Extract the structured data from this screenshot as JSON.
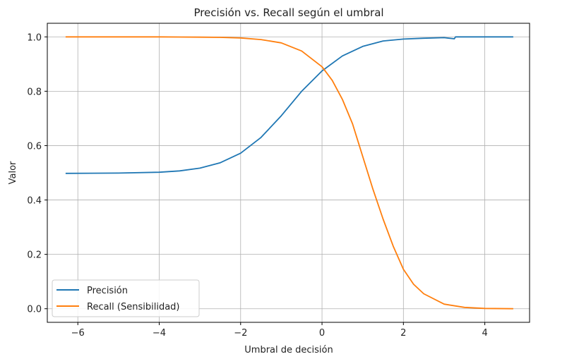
{
  "chart_data": {
    "type": "line",
    "title": "Precisión vs. Recall según el umbral",
    "xlabel": "Umbral de decisión",
    "ylabel": "Valor",
    "xlim": [
      -6.75,
      5.1
    ],
    "ylim": [
      -0.05,
      1.05
    ],
    "xticks": [
      -6,
      -4,
      -2,
      0,
      2,
      4
    ],
    "xtick_labels": [
      "−6",
      "−4",
      "−2",
      "0",
      "2",
      "4"
    ],
    "yticks": [
      0.0,
      0.2,
      0.4,
      0.6,
      0.8,
      1.0
    ],
    "ytick_labels": [
      "0.0",
      "0.2",
      "0.4",
      "0.6",
      "0.8",
      "1.0"
    ],
    "grid": true,
    "legend_position": "lower-left",
    "series": [
      {
        "name": "Precisión",
        "color": "#1f77b4",
        "x": [
          -6.3,
          -5,
          -4,
          -3.5,
          -3,
          -2.5,
          -2,
          -1.5,
          -1,
          -0.5,
          0,
          0.5,
          1,
          1.5,
          2,
          2.5,
          3,
          3.25,
          3.28,
          4,
          4.7
        ],
        "y": [
          0.498,
          0.499,
          0.502,
          0.507,
          0.517,
          0.537,
          0.572,
          0.63,
          0.71,
          0.8,
          0.875,
          0.93,
          0.965,
          0.985,
          0.992,
          0.995,
          0.997,
          0.993,
          1.0,
          1.0,
          1.0
        ]
      },
      {
        "name": "Recall (Sensibilidad)",
        "color": "#ff7f0e",
        "x": [
          -6.3,
          -4,
          -3,
          -2.5,
          -2,
          -1.5,
          -1,
          -0.5,
          0,
          0.25,
          0.5,
          0.75,
          1,
          1.25,
          1.5,
          1.75,
          2,
          2.25,
          2.5,
          3,
          3.5,
          4,
          4.7
        ],
        "y": [
          1.0,
          1.0,
          0.999,
          0.998,
          0.996,
          0.99,
          0.978,
          0.948,
          0.89,
          0.84,
          0.77,
          0.68,
          0.56,
          0.44,
          0.33,
          0.23,
          0.145,
          0.09,
          0.055,
          0.017,
          0.005,
          0.001,
          0.0
        ]
      }
    ]
  }
}
